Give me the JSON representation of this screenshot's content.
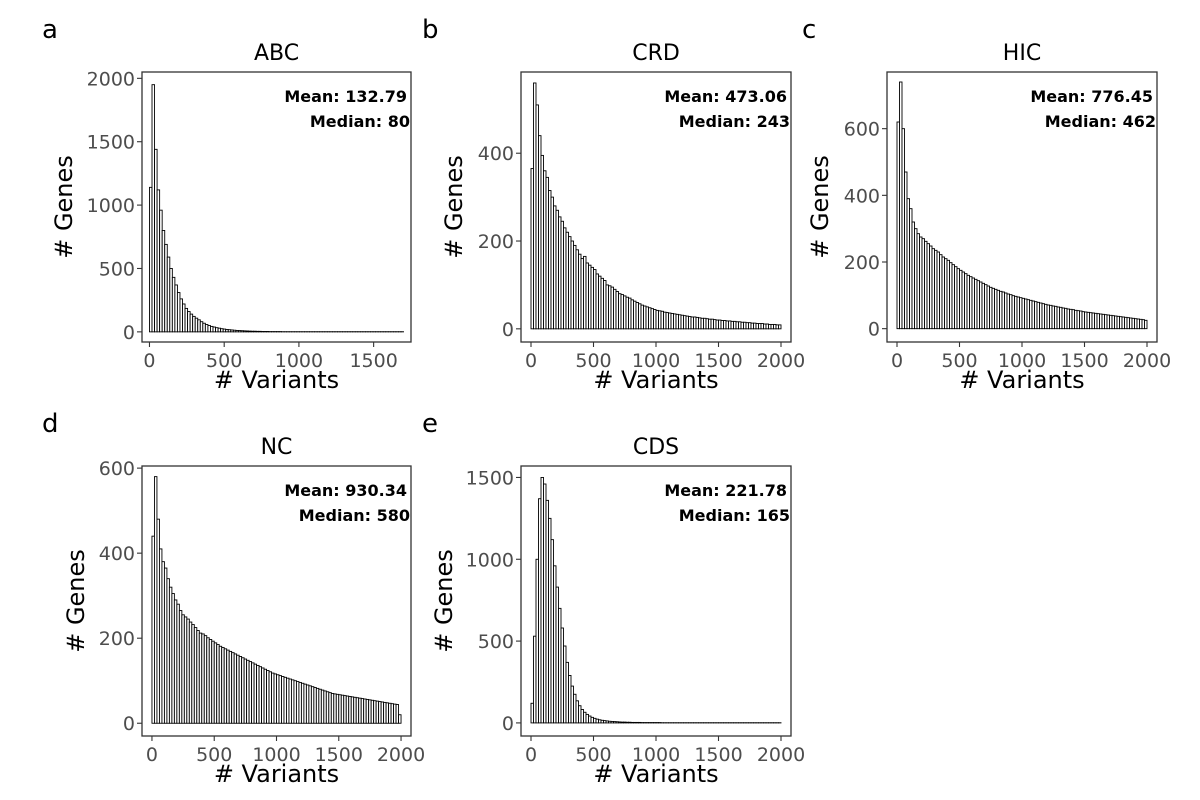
{
  "chart_data": [
    {
      "type": "bar",
      "panel_label": "a",
      "title": "ABC",
      "xlabel": "# Variants",
      "ylabel": "# Genes",
      "xlim": [
        -50,
        1750
      ],
      "ylim": [
        -80,
        2050
      ],
      "xticks": [
        0,
        500,
        1000,
        1500
      ],
      "yticks": [
        0,
        500,
        1000,
        1500,
        2000
      ],
      "bin_start": 0,
      "bin_width": 17,
      "values": [
        1140,
        1950,
        1440,
        1120,
        960,
        800,
        690,
        590,
        500,
        430,
        370,
        310,
        260,
        220,
        185,
        160,
        140,
        122,
        108,
        95,
        80,
        68,
        58,
        50,
        43,
        38,
        33,
        29,
        25,
        22,
        19,
        17,
        15,
        13,
        11,
        10,
        9,
        8,
        7,
        6,
        5,
        5,
        4,
        4,
        3,
        3,
        3,
        2,
        2,
        2,
        2,
        2,
        1,
        1,
        1,
        1,
        1,
        1,
        1,
        1,
        1,
        1,
        1,
        1,
        1,
        1,
        1,
        1,
        1,
        1,
        1,
        1,
        1,
        1,
        1,
        1,
        1,
        1,
        1,
        1,
        1,
        1,
        1,
        1,
        1,
        1,
        1,
        1,
        1,
        1,
        1,
        1,
        1,
        1,
        1,
        1,
        1,
        1,
        1,
        1
      ],
      "annotations": {
        "mean": "Mean: 132.79",
        "median": "Median: 80"
      },
      "grid": false
    },
    {
      "type": "bar",
      "panel_label": "b",
      "title": "CRD",
      "xlabel": "# Variants",
      "ylabel": "# Genes",
      "xlim": [
        -80,
        2080
      ],
      "ylim": [
        -30,
        585
      ],
      "xticks": [
        0,
        500,
        1000,
        1500,
        2000
      ],
      "yticks": [
        0,
        200,
        400
      ],
      "bin_start": 0,
      "bin_width": 20,
      "values": [
        365,
        560,
        510,
        440,
        395,
        360,
        345,
        315,
        300,
        280,
        270,
        255,
        245,
        230,
        220,
        210,
        200,
        190,
        180,
        170,
        160,
        165,
        150,
        145,
        140,
        135,
        125,
        120,
        115,
        110,
        100,
        98,
        95,
        90,
        85,
        80,
        78,
        75,
        72,
        70,
        66,
        63,
        60,
        57,
        54,
        52,
        50,
        48,
        46,
        44,
        42,
        41,
        40,
        38,
        37,
        36,
        35,
        34,
        33,
        32,
        31,
        30,
        29,
        28,
        27,
        27,
        26,
        25,
        24,
        24,
        23,
        22,
        22,
        21,
        20,
        20,
        19,
        19,
        18,
        18,
        17,
        17,
        16,
        16,
        15,
        15,
        14,
        14,
        13,
        13,
        12,
        12,
        12,
        11,
        11,
        10,
        10,
        10,
        9,
        9
      ],
      "annotations": {
        "mean": "Mean: 473.06",
        "median": "Median: 243"
      },
      "grid": false
    },
    {
      "type": "bar",
      "panel_label": "c",
      "title": "HIC",
      "xlabel": "# Variants",
      "ylabel": "# Genes",
      "xlim": [
        -80,
        2080
      ],
      "ylim": [
        -40,
        770
      ],
      "xticks": [
        0,
        500,
        1000,
        1500,
        2000
      ],
      "yticks": [
        0,
        200,
        400,
        600
      ],
      "bin_start": 0,
      "bin_width": 20,
      "values": [
        620,
        740,
        600,
        470,
        390,
        360,
        320,
        300,
        285,
        275,
        270,
        262,
        255,
        248,
        240,
        235,
        230,
        222,
        215,
        210,
        205,
        198,
        192,
        186,
        180,
        175,
        170,
        165,
        160,
        156,
        152,
        148,
        144,
        140,
        136,
        132,
        128,
        124,
        121,
        118,
        115,
        112,
        110,
        107,
        104,
        102,
        99,
        97,
        95,
        93,
        91,
        89,
        87,
        85,
        83,
        81,
        79,
        77,
        75,
        73,
        71,
        70,
        68,
        67,
        65,
        64,
        62,
        61,
        59,
        58,
        57,
        55,
        54,
        53,
        51,
        50,
        49,
        48,
        47,
        46,
        45,
        44,
        43,
        42,
        41,
        40,
        39,
        38,
        37,
        36,
        35,
        34,
        33,
        32,
        31,
        30,
        29,
        28,
        27,
        25
      ],
      "annotations": {
        "mean": "Mean: 776.45",
        "median": "Median: 462"
      },
      "grid": false
    },
    {
      "type": "bar",
      "panel_label": "d",
      "title": "NC",
      "xlabel": "# Variants",
      "ylabel": "# Genes",
      "xlim": [
        -80,
        2080
      ],
      "ylim": [
        -30,
        605
      ],
      "xticks": [
        0,
        500,
        1000,
        1500,
        2000
      ],
      "yticks": [
        0,
        200,
        400,
        600
      ],
      "bin_start": 0,
      "bin_width": 20,
      "values": [
        440,
        580,
        480,
        410,
        380,
        365,
        340,
        320,
        305,
        290,
        280,
        265,
        255,
        250,
        245,
        238,
        232,
        225,
        218,
        212,
        210,
        206,
        201,
        197,
        193,
        189,
        185,
        181,
        178,
        175,
        172,
        169,
        166,
        163,
        160,
        157,
        154,
        151,
        148,
        145,
        142,
        139,
        136,
        133,
        130,
        127,
        124,
        121,
        118,
        116,
        114,
        112,
        110,
        108,
        106,
        104,
        102,
        100,
        98,
        96,
        94,
        92,
        90,
        88,
        86,
        84,
        82,
        80,
        78,
        76,
        74,
        72,
        70,
        69,
        68,
        67,
        66,
        65,
        64,
        63,
        62,
        61,
        60,
        59,
        58,
        57,
        56,
        55,
        54,
        53,
        52,
        51,
        50,
        49,
        48,
        47,
        46,
        45,
        44,
        20
      ],
      "annotations": {
        "mean": "Mean: 930.34",
        "median": "Median: 580"
      },
      "grid": false
    },
    {
      "type": "bar",
      "panel_label": "e",
      "title": "CDS",
      "xlabel": "# Variants",
      "ylabel": "# Genes",
      "xlim": [
        -80,
        2080
      ],
      "ylim": [
        -80,
        1570
      ],
      "xticks": [
        0,
        500,
        1000,
        1500,
        2000
      ],
      "yticks": [
        0,
        500,
        1000,
        1500
      ],
      "bin_start": 0,
      "bin_width": 20,
      "values": [
        120,
        530,
        1000,
        1370,
        1500,
        1460,
        1360,
        1250,
        1120,
        960,
        830,
        700,
        580,
        470,
        370,
        290,
        225,
        175,
        135,
        105,
        82,
        65,
        52,
        42,
        34,
        28,
        23,
        19,
        16,
        14,
        12,
        10,
        9,
        8,
        7,
        6,
        5,
        5,
        4,
        4,
        3,
        3,
        3,
        3,
        2,
        2,
        2,
        2,
        2,
        2,
        2,
        2,
        1,
        1,
        1,
        1,
        1,
        1,
        1,
        1,
        1,
        1,
        1,
        1,
        1,
        1,
        1,
        1,
        1,
        1,
        1,
        1,
        1,
        1,
        1,
        1,
        1,
        1,
        1,
        1,
        1,
        1,
        1,
        1,
        1,
        1,
        1,
        1,
        1,
        1,
        1,
        1,
        1,
        1,
        1,
        1,
        1,
        1,
        1,
        1
      ],
      "annotations": {
        "mean": "Mean: 221.78",
        "median": "Median: 165"
      },
      "grid": false
    }
  ]
}
